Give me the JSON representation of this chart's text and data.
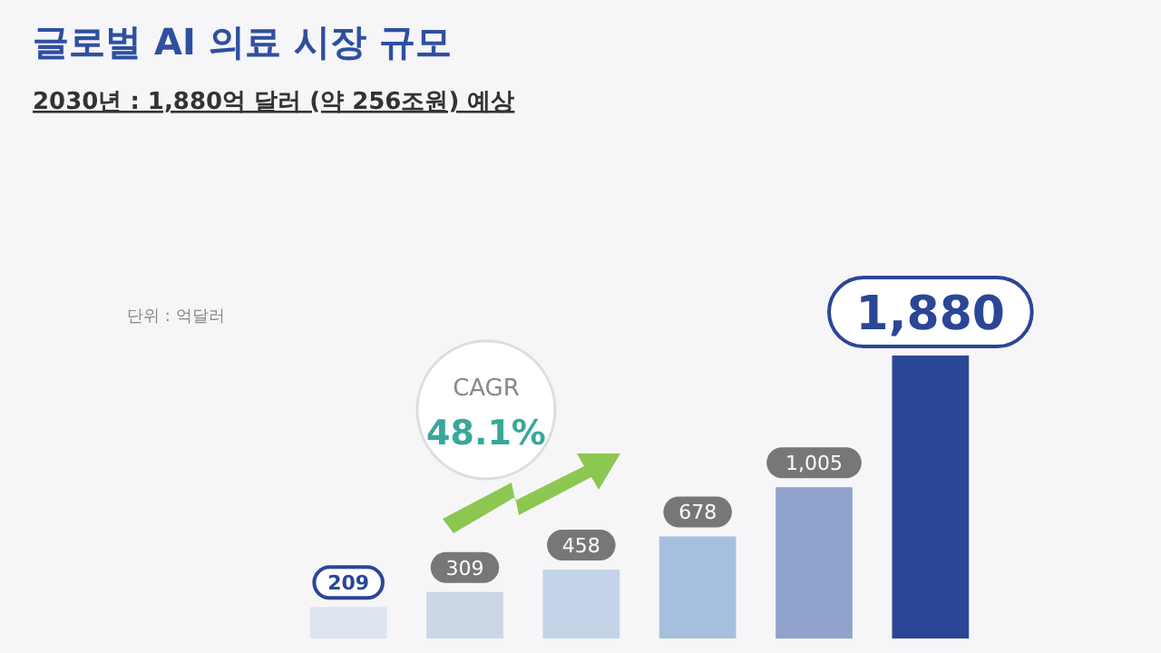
{
  "chart_data": {
    "type": "bar",
    "title": "글로벌 AI 의료 시장 규모",
    "subtitle": "2030년 : 1,880억 달러 (약 256조원) 예상",
    "annotations": [
      "단위 : 억달러",
      "CAGR",
      "48.1%"
    ],
    "categories": [
      null,
      null,
      null,
      null,
      null,
      null
    ],
    "values": [
      209,
      309,
      458,
      678,
      1005,
      1880
    ],
    "colors": [
      "#dde4ef",
      "#ccd6e6",
      "#c4d3e8",
      "#a7bfde",
      "#8fa3cc",
      "#2b4696"
    ],
    "value_labels": [
      "209",
      "309",
      "458",
      "678",
      "1,005",
      "1,880"
    ]
  }
}
